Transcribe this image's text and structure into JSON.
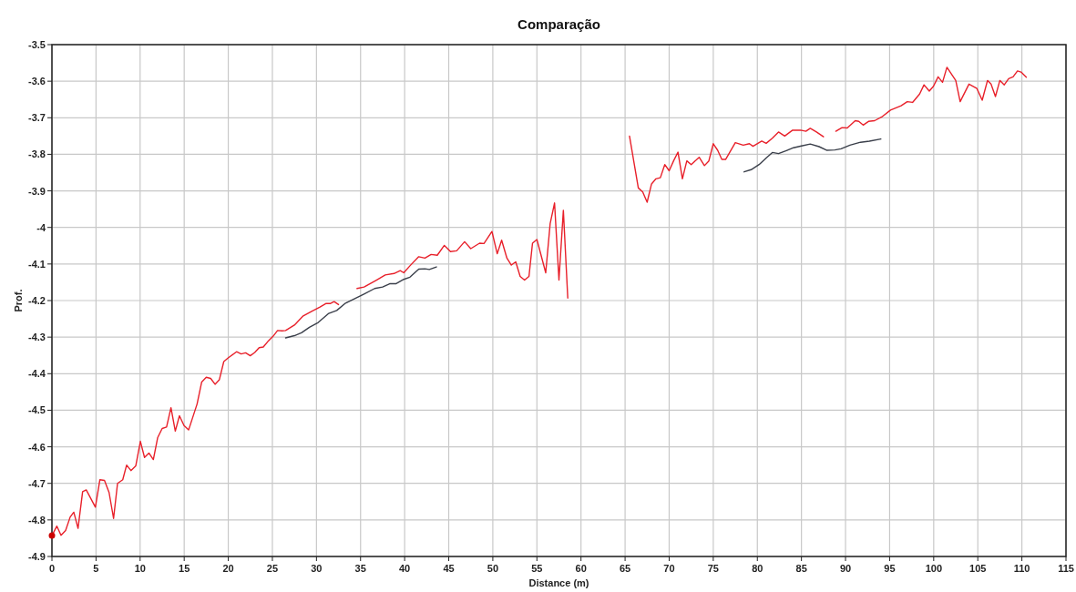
{
  "chart_data": {
    "type": "line",
    "title": "Comparação",
    "xlabel": "Distance (m)",
    "ylabel": "Prof.",
    "xlim": [
      0,
      115
    ],
    "xticks": [
      0,
      5,
      10,
      15,
      20,
      25,
      30,
      35,
      40,
      45,
      50,
      55,
      60,
      65,
      70,
      75,
      80,
      85,
      90,
      95,
      100,
      105,
      110,
      115
    ],
    "ylim": [
      -4.9,
      -3.5
    ],
    "yticks": [
      -4.9,
      -4.8,
      -4.7,
      -4.6,
      -4.5,
      -4.4,
      -4.3,
      -4.2,
      -4.1,
      -4,
      -3.9,
      -3.8,
      -3.7,
      -3.6,
      -3.5
    ],
    "grid": true,
    "marker": "none",
    "line_style": "solid",
    "series": [
      {
        "color": "#e8202a",
        "x": [
          0,
          0.56,
          1.03,
          1.55,
          2.07,
          2.48,
          2.96,
          3.48,
          3.89,
          4.93,
          5.44,
          5.96,
          6.48,
          6.99,
          7.44,
          8.03,
          8.47,
          8.96,
          9.51,
          10.03,
          10.5,
          11,
          11.5,
          11.99,
          12.5,
          13,
          13.5,
          13.99,
          14.46,
          14.98,
          15.5,
          16.46,
          16.98,
          17.5,
          18,
          18.5,
          18.98,
          19.49,
          19.98,
          20.94,
          21.46,
          21.97,
          22.49,
          23,
          23.5,
          23.97,
          24.56,
          25.07,
          25.59,
          26.1,
          26.5,
          27.5,
          28.5,
          29.5,
          30.4,
          31.1,
          31.6,
          32,
          32.5,
          33.5,
          34.6,
          35.4,
          36.8,
          37.8,
          38.8,
          39.5,
          39.9,
          40.6,
          41.6,
          42.3,
          43,
          43.7,
          44.5,
          45.2,
          45.9,
          46.8,
          47.5,
          48.5,
          49,
          49.9,
          50.5,
          51,
          51.6,
          52.1,
          52.6,
          53.1,
          53.6,
          54.1,
          54.5,
          55,
          56,
          56.5,
          57,
          57.5,
          58,
          58.5,
          62,
          65.5,
          66.5,
          67,
          67.5,
          68,
          68.5,
          69,
          69.5,
          70,
          70.5,
          71,
          71.5,
          72,
          72.5,
          73.4,
          74,
          74.5,
          75,
          75.5,
          75.97,
          76.4,
          77.5,
          78.4,
          79.1,
          79.5,
          80.5,
          81,
          81.7,
          82.4,
          83.1,
          84,
          84.9,
          85.5,
          86,
          86.7,
          87.5,
          88.2,
          88.9,
          89.6,
          90.2,
          91.1,
          91.5,
          92,
          92.6,
          93.3,
          94.1,
          95.1,
          96.3,
          97,
          97.6,
          98.4,
          98.9,
          99.5,
          99.97,
          100.5,
          101,
          101.5,
          102.5,
          103,
          104,
          104.9,
          105.5,
          106.1,
          106.5,
          107,
          107.5,
          108,
          108.5,
          109,
          109.5,
          109.9,
          110.5
        ],
        "values": [
          -4.843,
          -4.817,
          -4.842,
          -4.829,
          -4.792,
          -4.779,
          -4.823,
          -4.723,
          -4.718,
          -4.765,
          -4.69,
          -4.692,
          -4.725,
          -4.796,
          -4.7,
          -4.69,
          -4.65,
          -4.665,
          -4.652,
          -4.585,
          -4.629,
          -4.617,
          -4.635,
          -4.575,
          -4.55,
          -4.546,
          -4.493,
          -4.557,
          -4.515,
          -4.542,
          -4.554,
          -4.483,
          -4.423,
          -4.41,
          -4.413,
          -4.429,
          -4.417,
          -4.367,
          -4.357,
          -4.34,
          -4.346,
          -4.343,
          -4.351,
          -4.342,
          -4.329,
          -4.327,
          -4.31,
          -4.298,
          -4.282,
          -4.283,
          -4.282,
          -4.267,
          -4.242,
          -4.229,
          -4.218,
          -4.208,
          -4.208,
          -4.203,
          -4.211,
          null,
          -4.167,
          -4.163,
          -4.144,
          -4.13,
          -4.126,
          -4.118,
          -4.124,
          -4.105,
          -4.08,
          -4.084,
          -4.074,
          -4.076,
          -4.049,
          -4.066,
          -4.064,
          -4.039,
          -4.058,
          -4.043,
          -4.044,
          -4.011,
          -4.072,
          -4.035,
          -4.084,
          -4.103,
          -4.094,
          -4.134,
          -4.144,
          -4.134,
          -4.043,
          -4.033,
          -4.124,
          -3.99,
          -3.933,
          -4.144,
          -3.953,
          -4.193,
          null,
          -3.75,
          -3.892,
          -3.903,
          -3.931,
          -3.881,
          -3.867,
          -3.864,
          -3.828,
          -3.845,
          -3.818,
          -3.794,
          -3.867,
          -3.818,
          -3.828,
          -3.808,
          -3.831,
          -3.818,
          -3.771,
          -3.789,
          -3.814,
          -3.814,
          -3.768,
          -3.775,
          -3.771,
          -3.778,
          -3.764,
          -3.77,
          -3.756,
          -3.739,
          -3.75,
          -3.734,
          -3.734,
          -3.737,
          -3.729,
          -3.739,
          -3.752,
          null,
          -3.737,
          -3.727,
          -3.728,
          -3.708,
          -3.71,
          -3.72,
          -3.71,
          -3.708,
          -3.698,
          -3.679,
          -3.667,
          -3.656,
          -3.658,
          -3.635,
          -3.61,
          -3.627,
          -3.614,
          -3.588,
          -3.603,
          -3.562,
          -3.598,
          -3.656,
          -3.608,
          -3.62,
          -3.652,
          -3.598,
          -3.608,
          -3.642,
          -3.598,
          -3.61,
          -3.593,
          -3.588,
          -3.572,
          -3.575,
          -3.589
        ]
      },
      {
        "color": "#3a3f4a",
        "x": [
          26.5,
          27.5,
          28.3,
          29.2,
          30.2,
          31.4,
          32.3,
          33.3,
          34.4,
          35.4,
          36.6,
          37.5,
          38.3,
          39,
          39.9,
          40.6,
          41.6,
          42.3,
          42.8,
          43.6,
          60,
          78.5,
          79.3,
          80.2,
          81,
          81.7,
          82.4,
          83.3,
          84.1,
          85,
          86,
          87,
          87.9,
          88.8,
          89.5,
          90.5,
          91.7,
          92.7,
          94
        ],
        "values": [
          -4.302,
          -4.296,
          -4.288,
          -4.273,
          -4.26,
          -4.235,
          -4.227,
          -4.207,
          -4.194,
          -4.182,
          -4.167,
          -4.163,
          -4.154,
          -4.154,
          -4.142,
          -4.136,
          -4.114,
          -4.113,
          -4.115,
          -4.108,
          null,
          -3.848,
          -3.842,
          -3.828,
          -3.81,
          -3.795,
          -3.798,
          -3.79,
          -3.782,
          -3.777,
          -3.772,
          -3.779,
          -3.789,
          -3.788,
          -3.785,
          -3.775,
          -3.767,
          -3.764,
          -3.758
        ]
      },
      {
        "type": "scatter",
        "color": "#cc0000",
        "marker": "circle",
        "x": [
          0
        ],
        "values": [
          -4.843
        ]
      }
    ]
  }
}
